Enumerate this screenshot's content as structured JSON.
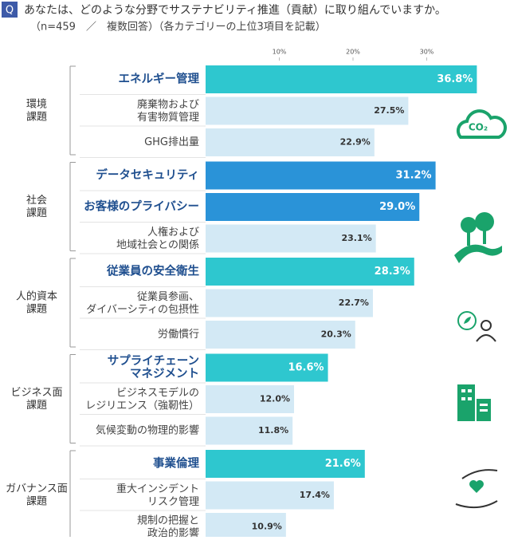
{
  "chart_data": {
    "type": "bar",
    "orientation": "horizontal",
    "header": {
      "q": "Q",
      "title": "あなたは、どのような分野でサステナビリティ推進（貢献）に取り組んでいますか。",
      "subtitle": "（n=459　／　複数回答）（各カテゴリーの上位3項目を記載）"
    },
    "xlim": [
      0,
      40
    ],
    "xticks": [
      {
        "value": 10,
        "label": "10%"
      },
      {
        "value": 20,
        "label": "20%"
      },
      {
        "value": 30,
        "label": "30%"
      }
    ],
    "icon_text": "CO₂",
    "groups": [
      {
        "name": "環境\n課題",
        "categories": [
          "エネルギー管理",
          "廃棄物および\n有害物質管理",
          "GHG排出量"
        ],
        "values": [
          36.8,
          27.5,
          22.9
        ],
        "value_labels": [
          "36.8%",
          "27.5%",
          "22.9%"
        ],
        "colors": [
          "#2ec7cf",
          "#d3e9f5",
          "#d3e9f5"
        ]
      },
      {
        "name": "社会\n課題",
        "categories": [
          "データセキュリティ",
          "お客様のプライバシー",
          "人権および\n地域社会との関係"
        ],
        "values": [
          31.2,
          29.0,
          23.1
        ],
        "value_labels": [
          "31.2%",
          "29.0%",
          "23.1%"
        ],
        "colors": [
          "#2a93d8",
          "#2a93d8",
          "#d3e9f5"
        ]
      },
      {
        "name": "人的資本\n課題",
        "categories": [
          "従業員の安全衛生",
          "従業員参画、\nダイバーシティの包摂性",
          "労働慣行"
        ],
        "values": [
          28.3,
          22.7,
          20.3
        ],
        "value_labels": [
          "28.3%",
          "22.7%",
          "20.3%"
        ],
        "colors": [
          "#2ec7cf",
          "#d3e9f5",
          "#d3e9f5"
        ]
      },
      {
        "name": "ビジネス面\n課題",
        "categories": [
          "サプライチェーン\nマネジメント",
          "ビジネスモデルの\nレジリエンス（強靭性）",
          "気候変動の物理的影響"
        ],
        "values": [
          16.6,
          12.0,
          11.8
        ],
        "value_labels": [
          "16.6%",
          "12.0%",
          "11.8%"
        ],
        "colors": [
          "#2ec7cf",
          "#d3e9f5",
          "#d3e9f5"
        ]
      },
      {
        "name": "ガバナンス面\n課題",
        "categories": [
          "事業倫理",
          "重大インシデント\nリスク管理",
          "規制の把握と\n政治的影響"
        ],
        "values": [
          21.6,
          17.4,
          10.9
        ],
        "value_labels": [
          "21.6%",
          "17.4%",
          "10.9%"
        ],
        "colors": [
          "#2ec7cf",
          "#d3e9f5",
          "#d3e9f5"
        ]
      }
    ]
  }
}
